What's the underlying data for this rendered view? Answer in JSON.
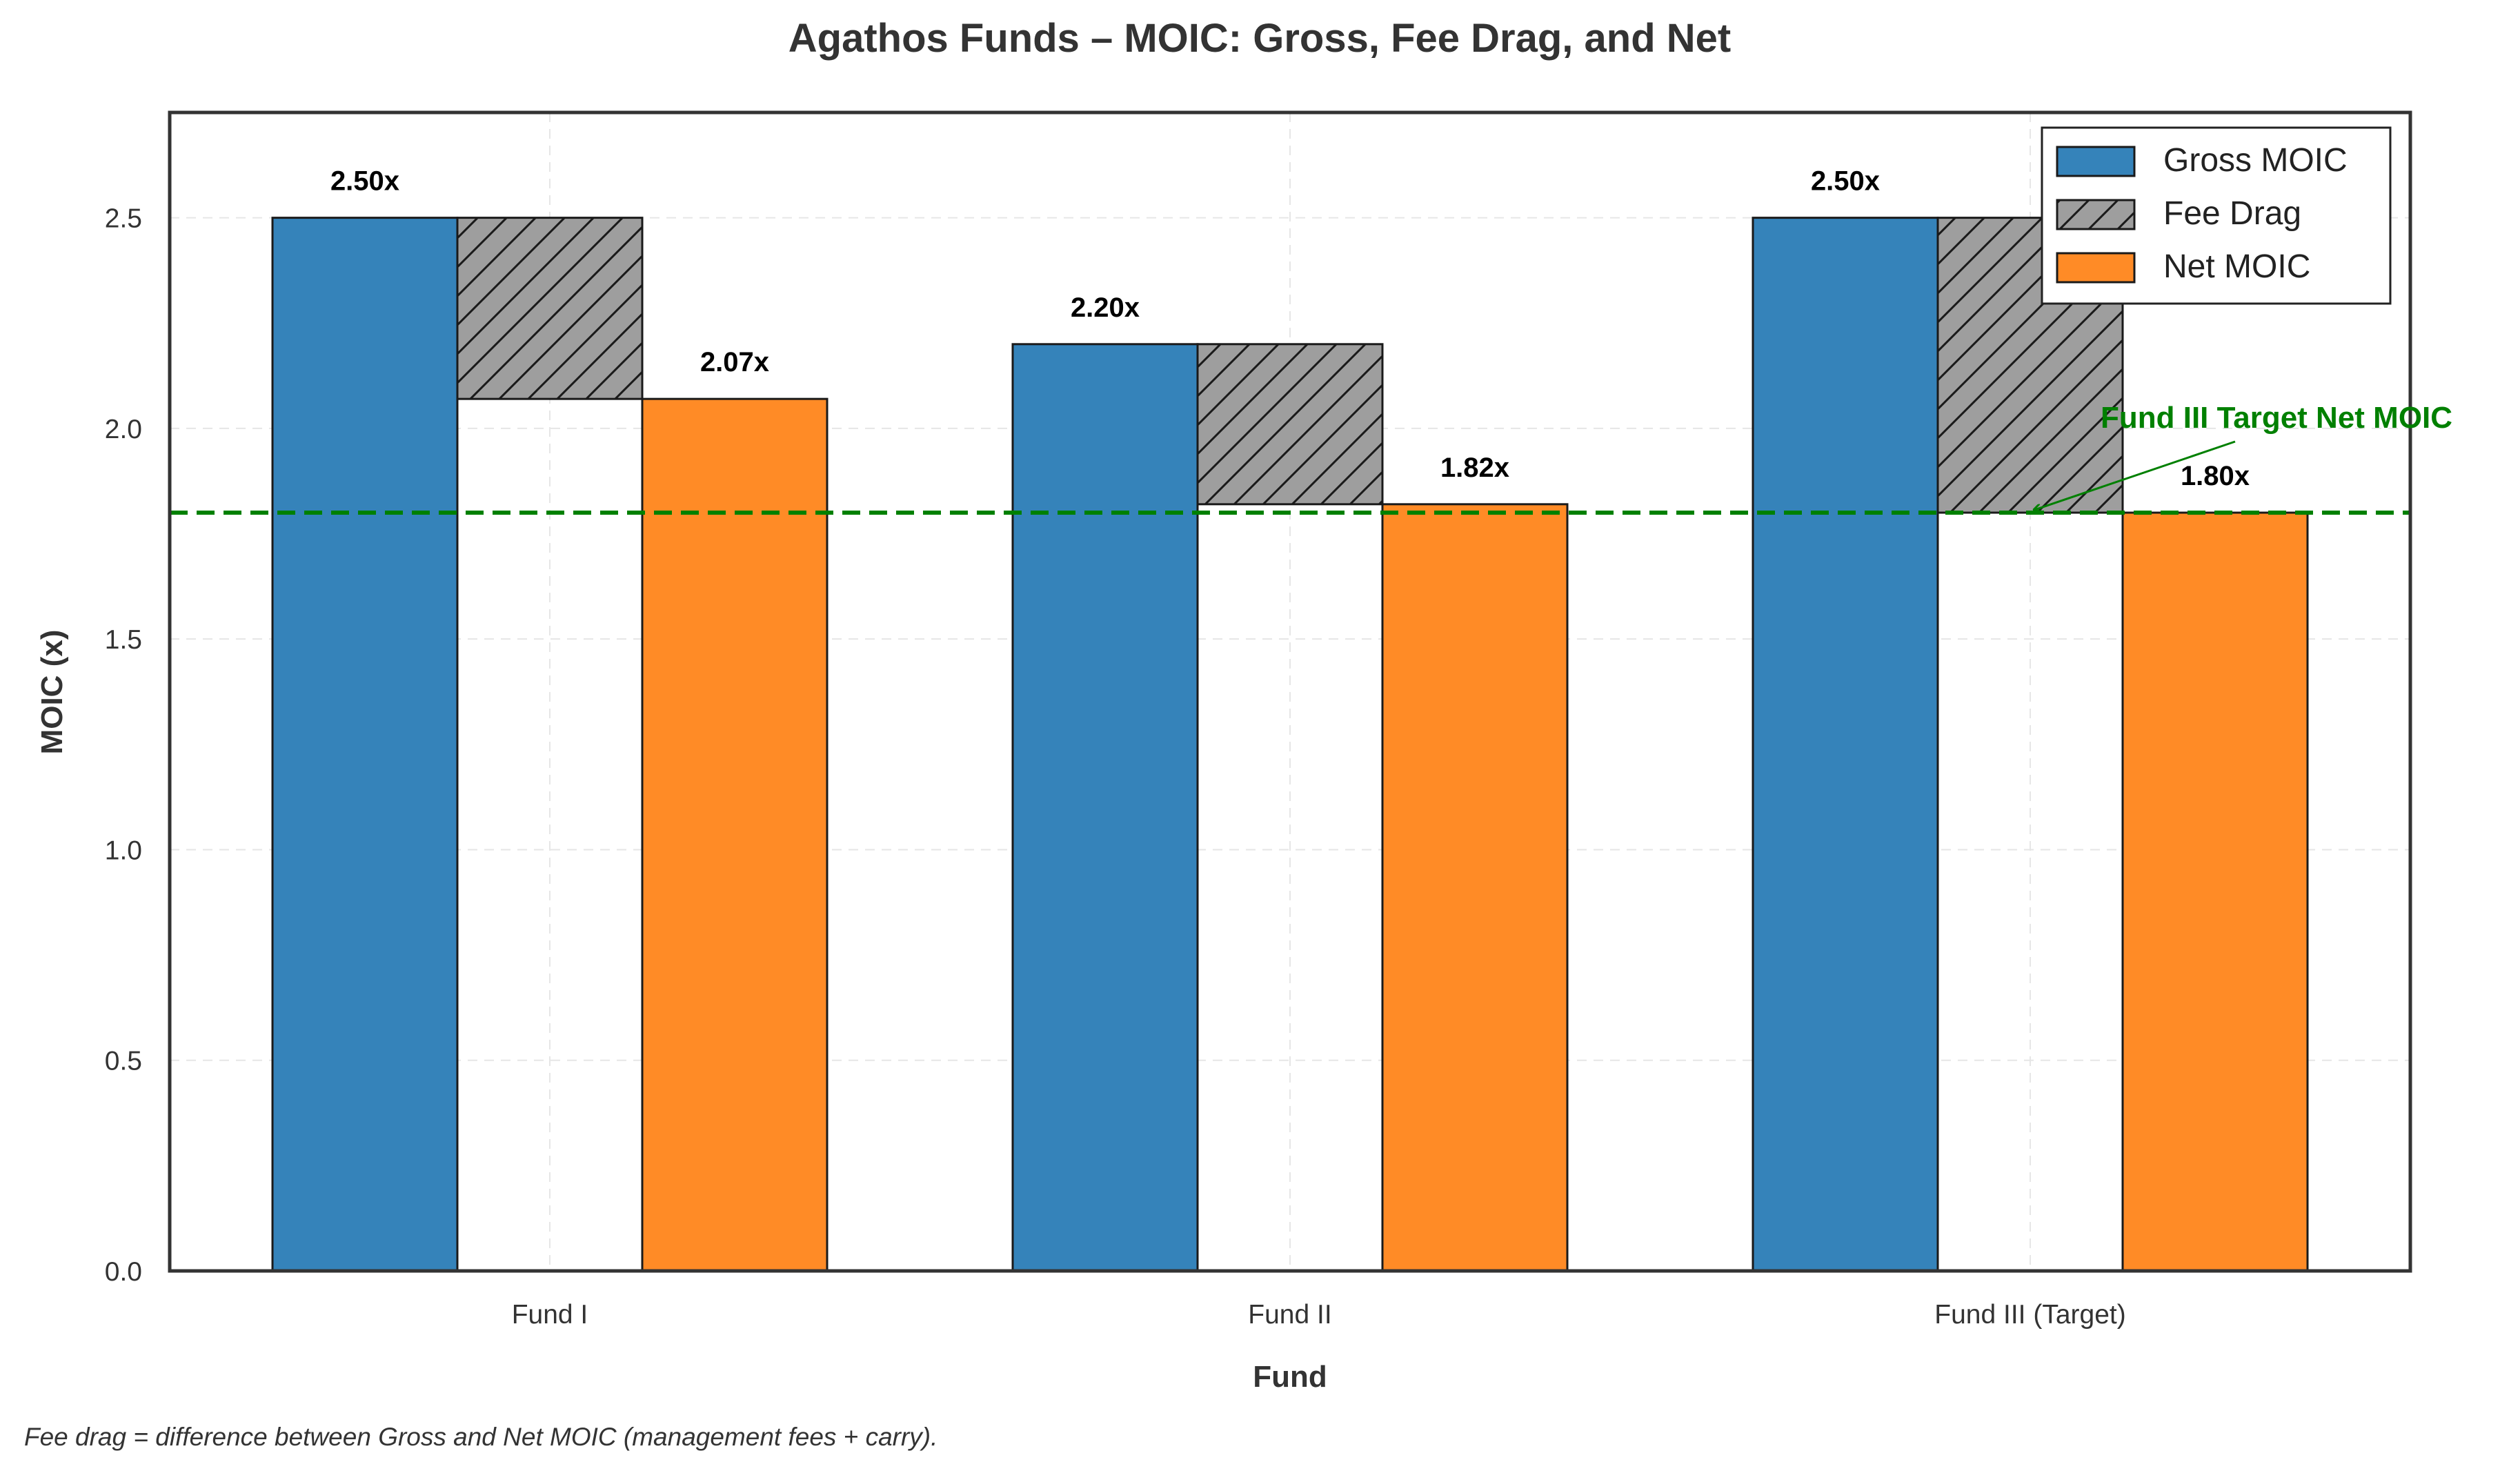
{
  "chart_data": {
    "type": "bar",
    "title": "Agathos Funds – MOIC: Gross, Fee Drag, and Net",
    "xlabel": "Fund",
    "ylabel": "MOIC (x)",
    "categories": [
      "Fund I",
      "Fund II",
      "Fund III (Target)"
    ],
    "ylim": [
      0,
      2.75
    ],
    "yticks": [
      "0.0",
      "0.5",
      "1.0",
      "1.5",
      "2.0",
      "2.5"
    ],
    "ytick_values": [
      0,
      0.5,
      1.0,
      1.5,
      2.0,
      2.5
    ],
    "grid": true,
    "legend_position": "top-right",
    "series": [
      {
        "name": "Gross MOIC",
        "values": [
          2.5,
          2.2,
          2.5
        ],
        "color": "#3583BA",
        "labels": [
          "2.50x",
          "2.20x",
          "2.50x"
        ]
      },
      {
        "name": "Fee Drag",
        "base": [
          2.07,
          1.82,
          1.8
        ],
        "top": [
          2.5,
          2.2,
          2.5
        ],
        "color": "#9E9E9E",
        "pattern": "hatch"
      },
      {
        "name": "Net MOIC",
        "values": [
          2.07,
          1.82,
          1.8
        ],
        "color": "#FF8B26",
        "labels": [
          "2.07x",
          "1.82x",
          "1.80x"
        ]
      }
    ],
    "reference_line": {
      "value": 1.8,
      "color": "#008000",
      "style": "dashed"
    },
    "annotation": {
      "text": "Fund III Target Net MOIC",
      "target_category": 2,
      "target_value": 1.8,
      "color": "#008000"
    }
  },
  "footnote": "Fee drag = difference between Gross and Net MOIC (management fees + carry)."
}
